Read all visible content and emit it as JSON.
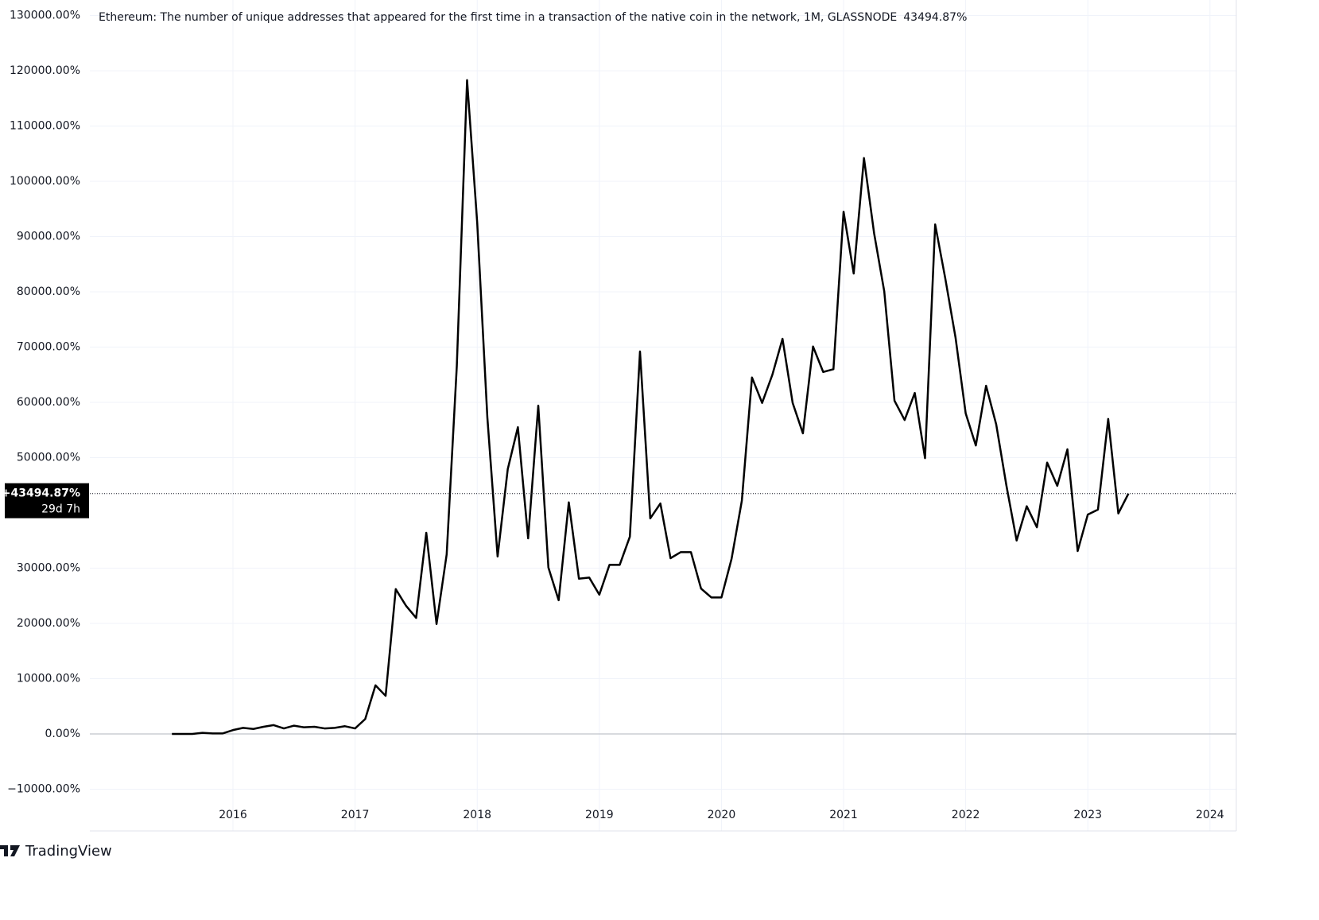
{
  "chart_data": {
    "type": "line",
    "title": "Ethereum: The number of unique addresses that appeared for the first time in a transaction of the native coin in the network, 1M, GLASSNODE",
    "title_value": "43494.87%",
    "last_value": 43494.87,
    "last_value_label": "+43494.87%",
    "countdown": "29d 7h",
    "brand": "TradingView",
    "color": "#000000",
    "grid": true,
    "x": [
      2015.5,
      2015.583,
      2015.667,
      2015.75,
      2015.833,
      2015.917,
      2016,
      2016.083,
      2016.167,
      2016.25,
      2016.333,
      2016.417,
      2016.5,
      2016.583,
      2016.667,
      2016.75,
      2016.833,
      2016.917,
      2017,
      2017.083,
      2017.167,
      2017.25,
      2017.333,
      2017.417,
      2017.5,
      2017.583,
      2017.667,
      2017.75,
      2017.833,
      2017.917,
      2018,
      2018.083,
      2018.167,
      2018.25,
      2018.333,
      2018.417,
      2018.5,
      2018.583,
      2018.667,
      2018.75,
      2018.833,
      2018.917,
      2019,
      2019.083,
      2019.167,
      2019.25,
      2019.333,
      2019.417,
      2019.5,
      2019.583,
      2019.667,
      2019.75,
      2019.833,
      2019.917,
      2020,
      2020.083,
      2020.167,
      2020.25,
      2020.333,
      2020.417,
      2020.5,
      2020.583,
      2020.667,
      2020.75,
      2020.833,
      2020.917,
      2021,
      2021.083,
      2021.167,
      2021.25,
      2021.333,
      2021.417,
      2021.5,
      2021.583,
      2021.667,
      2021.75,
      2021.833,
      2021.917,
      2022,
      2022.083,
      2022.167,
      2022.25,
      2022.333,
      2022.417,
      2022.5,
      2022.583,
      2022.667,
      2022.75,
      2022.833,
      2022.917,
      2023,
      2023.083,
      2023.167,
      2023.25,
      2023.333
    ],
    "values": [
      0,
      0,
      0,
      200,
      100,
      100,
      700,
      1100,
      900,
      1300,
      1600,
      1000,
      1500,
      1200,
      1300,
      1000,
      1100,
      1400,
      1000,
      2700,
      8800,
      6900,
      26200,
      23200,
      21000,
      36400,
      19900,
      32500,
      66600,
      118300,
      92500,
      57300,
      32100,
      47900,
      55500,
      35400,
      59400,
      30100,
      24200,
      41900,
      28100,
      28300,
      25200,
      30600,
      30600,
      35700,
      69200,
      39000,
      41700,
      31800,
      32900,
      32900,
      26300,
      24700,
      24700,
      31700,
      42200,
      64500,
      59900,
      65000,
      71500,
      59900,
      54400,
      70100,
      65500,
      66000,
      94500,
      83300,
      104200,
      90600,
      80100,
      60300,
      56800,
      61700,
      49900,
      92200,
      82400,
      71700,
      58000,
      52200,
      63000,
      56000,
      45000,
      35000,
      41200,
      37400,
      49100,
      44900,
      51500,
      33100,
      39700,
      40600,
      57000,
      39900,
      43494.87
    ],
    "xlim": [
      2014.828,
      2024.216
    ],
    "xticks": [
      2016,
      2017,
      2018,
      2019,
      2020,
      2021,
      2022,
      2023,
      2024
    ],
    "ylim": [
      -17550,
      132800
    ],
    "yticks": [
      {
        "value": -10000,
        "label": "−10000.00%"
      },
      {
        "value": 0,
        "label": "0.00%"
      },
      {
        "value": 10000,
        "label": "10000.00%"
      },
      {
        "value": 20000,
        "label": "20000.00%"
      },
      {
        "value": 30000,
        "label": "30000.00%"
      },
      {
        "value": 50000,
        "label": "50000.00%"
      },
      {
        "value": 60000,
        "label": "60000.00%"
      },
      {
        "value": 70000,
        "label": "70000.00%"
      },
      {
        "value": 80000,
        "label": "80000.00%"
      },
      {
        "value": 90000,
        "label": "90000.00%"
      },
      {
        "value": 100000,
        "label": "100000.00%"
      },
      {
        "value": 110000,
        "label": "110000.00%"
      },
      {
        "value": 120000,
        "label": "120000.00%"
      },
      {
        "value": 130000,
        "label": "130000.00%"
      }
    ]
  }
}
